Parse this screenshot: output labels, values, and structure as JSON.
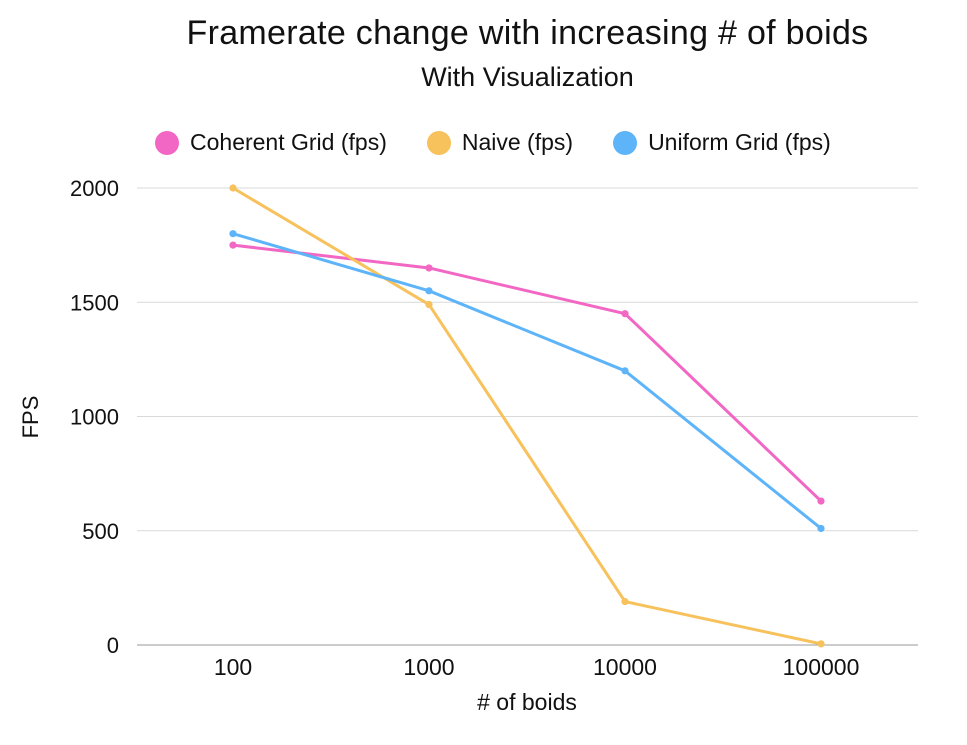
{
  "chart_data": {
    "type": "line",
    "title": "Framerate change with increasing # of boids",
    "subtitle": "With Visualization",
    "xlabel": "# of boids",
    "ylabel": "FPS",
    "categories": [
      "100",
      "1000",
      "10000",
      "100000"
    ],
    "ylim": [
      0,
      2000
    ],
    "yticks": [
      0,
      500,
      1000,
      1500,
      2000
    ],
    "grid": true,
    "legend_position": "top",
    "series": [
      {
        "name": "Coherent Grid (fps)",
        "color": "#f266c4",
        "values": [
          1750,
          1650,
          1450,
          630
        ]
      },
      {
        "name": "Naive (fps)",
        "color": "#f7c15c",
        "values": [
          2000,
          1490,
          190,
          5
        ]
      },
      {
        "name": "Uniform Grid (fps)",
        "color": "#5db4f9",
        "values": [
          1800,
          1550,
          1200,
          510
        ]
      }
    ]
  }
}
